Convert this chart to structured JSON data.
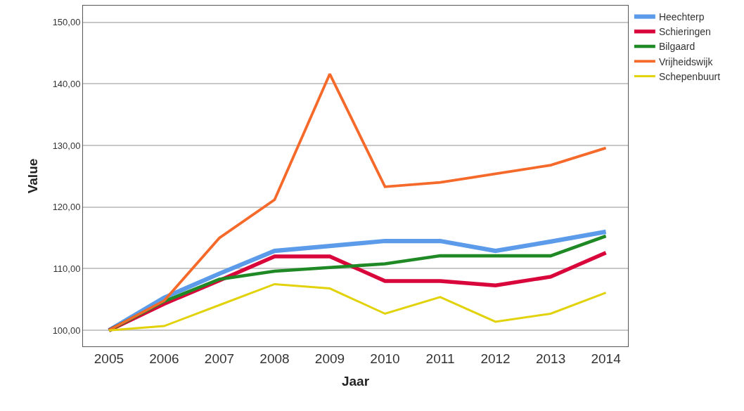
{
  "chart_data": {
    "type": "line",
    "xlabel": "Jaar",
    "ylabel": "Value",
    "x": [
      2005,
      2006,
      2007,
      2008,
      2009,
      2010,
      2011,
      2012,
      2013,
      2014
    ],
    "xlim": [
      2004.53,
      2014.4
    ],
    "xticks": [
      2005,
      2006,
      2007,
      2008,
      2009,
      2010,
      2011,
      2012,
      2013,
      2014
    ],
    "ylim": [
      97.4,
      152.7
    ],
    "yticks": [
      {
        "value": 100,
        "label": "100,00"
      },
      {
        "value": 110,
        "label": "110,00"
      },
      {
        "value": 120,
        "label": "120,00"
      },
      {
        "value": 130,
        "label": "130,00"
      },
      {
        "value": 140,
        "label": "140,00"
      },
      {
        "value": 150,
        "label": "150,00"
      }
    ],
    "grid": "y",
    "legend": "top right",
    "marker": "none",
    "line_style": "solid",
    "series": [
      {
        "name": "Heechterp",
        "color": "#5b9bea",
        "values": [
          100,
          105.3,
          109.2,
          112.9,
          113.7,
          114.5,
          114.5,
          112.9,
          114.4,
          116.0
        ]
      },
      {
        "name": "Schieringen",
        "color": "#d8063a",
        "values": [
          100,
          104.3,
          108.1,
          112.0,
          112.0,
          108.0,
          108.0,
          107.3,
          108.7,
          112.6
        ]
      },
      {
        "name": "Bilgaard",
        "color": "#1f8a25",
        "values": [
          100,
          104.7,
          108.3,
          109.6,
          110.2,
          110.8,
          112.1,
          112.1,
          112.1,
          115.3
        ]
      },
      {
        "name": "Vrijheidswijk",
        "color": "#f56a2a",
        "values": [
          100,
          104.8,
          115.0,
          121.2,
          141.6,
          123.3,
          124.0,
          125.4,
          126.8,
          129.6
        ]
      },
      {
        "name": "Schepenbuurt",
        "color": "#e2d20c",
        "values": [
          100,
          100.7,
          104.1,
          107.5,
          106.8,
          102.7,
          105.4,
          101.4,
          102.7,
          106.1
        ]
      }
    ]
  }
}
